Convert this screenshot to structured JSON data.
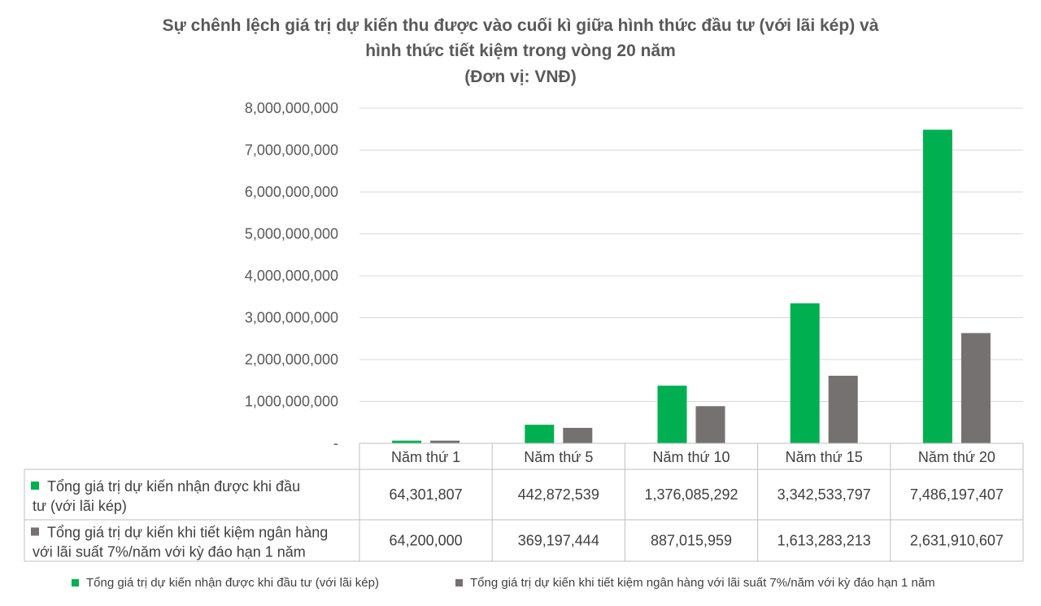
{
  "chart_data": {
    "type": "bar",
    "title": [
      "Sự chênh lệch giá trị dự kiến thu được vào cuối kì giữa hình thức đầu tư (với lãi kép) và",
      "hình thức tiết kiệm trong vòng 20 năm",
      "(Đơn vị: VNĐ)"
    ],
    "categories": [
      "Năm thứ 1",
      "Năm thứ 5",
      "Năm thứ 10",
      "Năm thứ 15",
      "Năm thứ 20"
    ],
    "series": [
      {
        "name": "Tổng giá trị dự kiến nhận được khi đầu tư (với lãi kép)",
        "table_label": [
          "Tổng giá trị dự kiến nhận được khi đầu",
          "tư (với lãi kép)"
        ],
        "color": "#00b050",
        "values": [
          64301807,
          442872539,
          1376085292,
          3342533797,
          7486197407
        ],
        "value_labels": [
          "64,301,807",
          "442,872,539",
          "1,376,085,292",
          "3,342,533,797",
          "7,486,197,407"
        ]
      },
      {
        "name": "Tổng giá trị dự kiến khi tiết kiệm ngân hàng với lãi suất 7%/năm với kỳ đáo hạn 1 năm",
        "table_label": [
          "Tổng giá trị dự kiến khi tiết kiệm ngân hàng",
          "với lãi suất 7%/năm với kỳ đáo hạn 1 năm"
        ],
        "color": "#767171",
        "values": [
          64200000,
          369197444,
          887015959,
          1613283213,
          2631910607
        ],
        "value_labels": [
          "64,200,000",
          "369,197,444",
          "887,015,959",
          "1,613,283,213",
          "2,631,910,607"
        ]
      }
    ],
    "ylim": [
      0,
      8000000000
    ],
    "yticks": [
      0,
      1000000000,
      2000000000,
      3000000000,
      4000000000,
      5000000000,
      6000000000,
      7000000000,
      8000000000
    ],
    "ytick_labels": [
      "-",
      "1,000,000,000",
      "2,000,000,000",
      "3,000,000,000",
      "4,000,000,000",
      "5,000,000,000",
      "6,000,000,000",
      "7,000,000,000",
      "8,000,000,000"
    ],
    "grid": true,
    "data_table": true,
    "legend_position": "bottom"
  }
}
